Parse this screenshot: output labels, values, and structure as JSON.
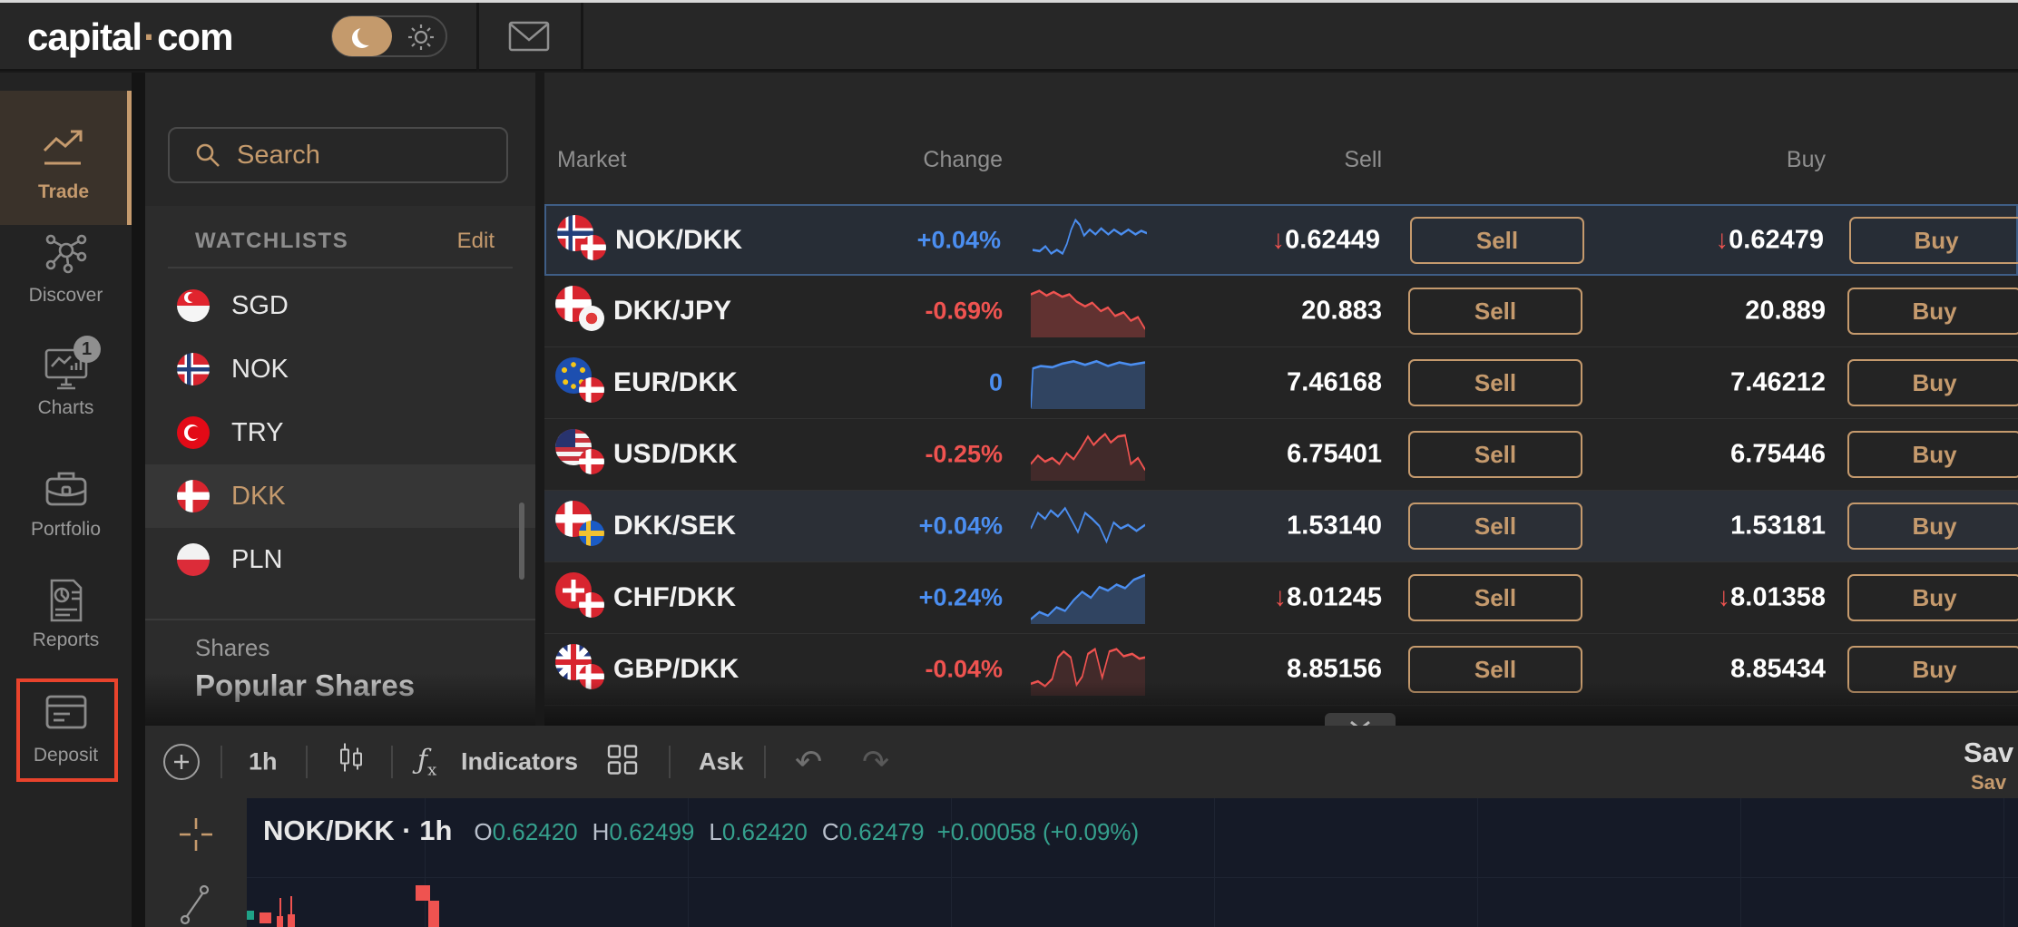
{
  "topbar": {
    "logo_part1": "capital",
    "logo_dot": "·",
    "logo_part2": "com"
  },
  "sidebar": {
    "items": [
      {
        "id": "trade",
        "label": "Trade",
        "active": true
      },
      {
        "id": "discover",
        "label": "Discover"
      },
      {
        "id": "charts",
        "label": "Charts",
        "badge": "1"
      },
      {
        "id": "portfolio",
        "label": "Portfolio"
      },
      {
        "id": "reports",
        "label": "Reports"
      },
      {
        "id": "deposit",
        "label": "Deposit",
        "annotated": true
      }
    ]
  },
  "watchlist": {
    "search_placeholder": "Search",
    "section_title": "WATCHLISTS",
    "edit_label": "Edit",
    "items": [
      {
        "code": "SGD",
        "flag": "sgd"
      },
      {
        "code": "NOK",
        "flag": "nok"
      },
      {
        "code": "TRY",
        "flag": "try"
      },
      {
        "code": "DKK",
        "flag": "dkk",
        "selected": true
      },
      {
        "code": "PLN",
        "flag": "pln"
      }
    ],
    "shares_label": "Shares",
    "popular_label": "Popular Shares"
  },
  "market_table": {
    "headers": {
      "market": "Market",
      "change": "Change",
      "sell": "Sell",
      "buy": "Buy"
    },
    "sell_button": "Sell",
    "buy_button": "Buy",
    "rows": [
      {
        "market": "NOK/DKK",
        "flags": [
          "nok",
          "dkk"
        ],
        "change": "+0.04%",
        "dir": "up",
        "spark": "nok",
        "sell": "0.62449",
        "buy": "0.62479",
        "sell_arrow": true,
        "buy_arrow": true,
        "selected": true
      },
      {
        "market": "DKK/JPY",
        "flags": [
          "dkk",
          "jpy"
        ],
        "change": "-0.69%",
        "dir": "down",
        "spark": "jpy",
        "sell": "20.883",
        "buy": "20.889",
        "sell_arrow": false,
        "buy_arrow": false
      },
      {
        "market": "EUR/DKK",
        "flags": [
          "eur",
          "dkk"
        ],
        "change": "0",
        "dir": "up",
        "spark": "eur",
        "sell": "7.46168",
        "buy": "7.46212",
        "sell_arrow": false,
        "buy_arrow": false
      },
      {
        "market": "USD/DKK",
        "flags": [
          "usd",
          "dkk"
        ],
        "change": "-0.25%",
        "dir": "down",
        "spark": "usd",
        "sell": "6.75401",
        "buy": "6.75446",
        "sell_arrow": false,
        "buy_arrow": false
      },
      {
        "market": "DKK/SEK",
        "flags": [
          "dkk",
          "sek"
        ],
        "change": "+0.04%",
        "dir": "up",
        "spark": "sek",
        "sell": "1.53140",
        "buy": "1.53181",
        "sell_arrow": false,
        "buy_arrow": false,
        "hover": true
      },
      {
        "market": "CHF/DKK",
        "flags": [
          "chf",
          "dkk"
        ],
        "change": "+0.24%",
        "dir": "up",
        "spark": "chf",
        "sell": "8.01245",
        "buy": "8.01358",
        "sell_arrow": true,
        "buy_arrow": true
      },
      {
        "market": "GBP/DKK",
        "flags": [
          "gbp",
          "dkk"
        ],
        "change": "-0.04%",
        "dir": "down",
        "spark": "gbp",
        "sell": "8.85156",
        "buy": "8.85434",
        "sell_arrow": false,
        "buy_arrow": false
      }
    ]
  },
  "chart_toolbar": {
    "timeframe": "1h",
    "indicators_label": "Indicators",
    "price_mode": "Ask",
    "save_primary": "Sav",
    "save_secondary": "Sav"
  },
  "chart": {
    "title": "NOK/DKK · 1h",
    "ohlc": [
      {
        "label": "O",
        "value": "0.62420"
      },
      {
        "label": "H",
        "value": "0.62499"
      },
      {
        "label": "L",
        "value": "0.62420"
      },
      {
        "label": "C",
        "value": "0.62479"
      }
    ],
    "change": "+0.00058 (+0.09%)"
  },
  "colors": {
    "accent": "#c59a6d",
    "blue": "#4b8ef0",
    "red": "#ef5350",
    "teal": "#35a08d",
    "annotation": "#e8432c"
  }
}
